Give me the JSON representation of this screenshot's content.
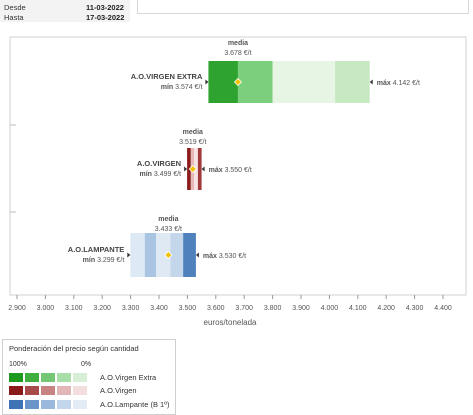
{
  "period": {
    "desde_label": "Desde",
    "desde_value": "11-03-2022",
    "hasta_label": "Hasta",
    "hasta_value": "17-03-2022"
  },
  "chart_data": {
    "type": "box",
    "xlabel": "euros/tonelada",
    "xlim": [
      2880,
      4470
    ],
    "xticks": [
      2900,
      3000,
      3100,
      3200,
      3300,
      3400,
      3500,
      3600,
      3700,
      3800,
      3900,
      4000,
      4100,
      4200,
      4300,
      4400
    ],
    "xtick_labels": [
      "2.900",
      "3.000",
      "3.100",
      "3.200",
      "3.300",
      "3.400",
      "3.500",
      "3.600",
      "3.700",
      "3.800",
      "3.900",
      "4.000",
      "4.100",
      "4.200",
      "4.300",
      "4.400"
    ],
    "median_word": "media",
    "min_word": "mín",
    "max_word": "máx",
    "series": [
      {
        "name": "A.O.VIRGEN EXTRA",
        "min": 3574,
        "media": 3678,
        "max": 4142,
        "min_label": "3.574 €/t",
        "media_label": "3.678 €/t",
        "max_label": "4.142 €/t",
        "segments": [
          {
            "from": 3574,
            "to": 3678,
            "color": "#2fa32f"
          },
          {
            "from": 3678,
            "to": 3800,
            "color": "#7ccf7c"
          },
          {
            "from": 3800,
            "to": 4020,
            "color": "#e6f5e4"
          },
          {
            "from": 4020,
            "to": 4142,
            "color": "#c7e9c2"
          }
        ]
      },
      {
        "name": "A.O.VIRGEN",
        "min": 3499,
        "media": 3519,
        "max": 3550,
        "min_label": "3.499 €/t",
        "media_label": "3.519 €/t",
        "max_label": "3.550 €/t",
        "segments": [
          {
            "from": 3499,
            "to": 3512,
            "color": "#8b1a1a"
          },
          {
            "from": 3512,
            "to": 3524,
            "color": "#e6b8b8"
          },
          {
            "from": 3524,
            "to": 3537,
            "color": "#f6e4e4"
          },
          {
            "from": 3537,
            "to": 3550,
            "color": "#a33a3a"
          }
        ]
      },
      {
        "name": "A.O.LAMPANTE",
        "min": 3299,
        "media": 3433,
        "max": 3530,
        "min_label": "3.299 €/t",
        "media_label": "3.433 €/t",
        "max_label": "3.530 €/t",
        "segments": [
          {
            "from": 3299,
            "to": 3350,
            "color": "#dde9f4"
          },
          {
            "from": 3350,
            "to": 3390,
            "color": "#a9c5e2"
          },
          {
            "from": 3390,
            "to": 3440,
            "color": "#dfe9f3"
          },
          {
            "from": 3440,
            "to": 3485,
            "color": "#c3d6ea"
          },
          {
            "from": 3485,
            "to": 3530,
            "color": "#4f82bd"
          }
        ]
      }
    ]
  },
  "legend": {
    "title": "Ponderación del precio según cantidad",
    "pct_high": "100%",
    "pct_low": "0%",
    "rows": [
      {
        "label": "A.O.Virgen Extra",
        "colors": [
          "#1e9a1e",
          "#3fb03f",
          "#74c874",
          "#a8dea8",
          "#d6efd6"
        ]
      },
      {
        "label": "A.O.Virgen",
        "colors": [
          "#8b1a1a",
          "#a84a4a",
          "#c98282",
          "#e2b6b6",
          "#f3dddd"
        ]
      },
      {
        "label": "A.O.Lampante (B 1º)",
        "colors": [
          "#3d73b4",
          "#6a95c8",
          "#9ab8dc",
          "#c3d5ea",
          "#e3ecf6"
        ]
      }
    ]
  }
}
